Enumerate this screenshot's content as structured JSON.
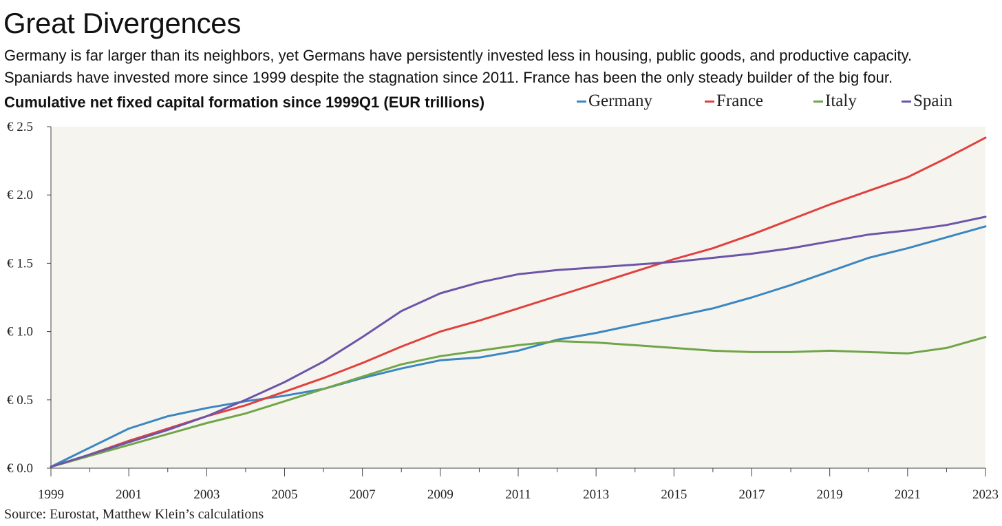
{
  "title": "Great Divergences",
  "subtitle_lines": [
    "Germany is far larger than its neighbors, yet Germans have persistently invested less in housing, public goods, and productive capacity.",
    "Spaniards have invested more since 1999 despite the stagnation since 2011. France has been the only steady builder of the big four."
  ],
  "source": "Source: Eurostat, Matthew Klein’s calculations",
  "chart_data": {
    "type": "line",
    "title": "Cumulative net fixed capital formation since 1999Q1 (EUR trillions)",
    "xlabel": "",
    "ylabel": "",
    "xlim": [
      1999,
      2023
    ],
    "ylim": [
      0,
      2.5
    ],
    "x_ticks": [
      "1999",
      "2001",
      "2003",
      "2005",
      "2007",
      "2009",
      "2011",
      "2013",
      "2015",
      "2017",
      "2019",
      "2021",
      "2023"
    ],
    "y_ticks": [
      "€ 0.0",
      "€ 0.5",
      "€ 1.0",
      "€ 1.5",
      "€ 2.0",
      "€ 2.5"
    ],
    "y_tick_values": [
      0,
      0.5,
      1.0,
      1.5,
      2.0,
      2.5
    ],
    "grid": false,
    "legend_position": "top-right",
    "series": [
      {
        "name": "Germany",
        "color": "#3a87c1",
        "x": [
          1999,
          2000,
          2001,
          2002,
          2003,
          2004,
          2005,
          2006,
          2007,
          2008,
          2009,
          2010,
          2011,
          2012,
          2013,
          2014,
          2015,
          2016,
          2017,
          2018,
          2019,
          2020,
          2021,
          2022,
          2023
        ],
        "y": [
          0.01,
          0.15,
          0.29,
          0.38,
          0.44,
          0.49,
          0.53,
          0.58,
          0.66,
          0.73,
          0.79,
          0.81,
          0.86,
          0.94,
          0.99,
          1.05,
          1.11,
          1.17,
          1.25,
          1.34,
          1.44,
          1.54,
          1.61,
          1.69,
          1.77
        ]
      },
      {
        "name": "France",
        "color": "#e0413e",
        "x": [
          1999,
          2000,
          2001,
          2002,
          2003,
          2004,
          2005,
          2006,
          2007,
          2008,
          2009,
          2010,
          2011,
          2012,
          2013,
          2014,
          2015,
          2016,
          2017,
          2018,
          2019,
          2020,
          2021,
          2022,
          2023
        ],
        "y": [
          0.01,
          0.1,
          0.2,
          0.29,
          0.38,
          0.46,
          0.56,
          0.66,
          0.77,
          0.89,
          1.0,
          1.08,
          1.17,
          1.26,
          1.35,
          1.44,
          1.53,
          1.61,
          1.71,
          1.82,
          1.93,
          2.03,
          2.13,
          2.27,
          2.42
        ]
      },
      {
        "name": "Italy",
        "color": "#70a549",
        "x": [
          1999,
          2000,
          2001,
          2002,
          2003,
          2004,
          2005,
          2006,
          2007,
          2008,
          2009,
          2010,
          2011,
          2012,
          2013,
          2014,
          2015,
          2016,
          2017,
          2018,
          2019,
          2020,
          2021,
          2022,
          2023
        ],
        "y": [
          0.01,
          0.09,
          0.17,
          0.25,
          0.33,
          0.4,
          0.49,
          0.58,
          0.67,
          0.76,
          0.82,
          0.86,
          0.9,
          0.93,
          0.92,
          0.9,
          0.88,
          0.86,
          0.85,
          0.85,
          0.86,
          0.85,
          0.84,
          0.88,
          0.96
        ]
      },
      {
        "name": "Spain",
        "color": "#6c55a8",
        "x": [
          1999,
          2000,
          2001,
          2002,
          2003,
          2004,
          2005,
          2006,
          2007,
          2008,
          2009,
          2010,
          2011,
          2012,
          2013,
          2014,
          2015,
          2016,
          2017,
          2018,
          2019,
          2020,
          2021,
          2022,
          2023
        ],
        "y": [
          0.01,
          0.1,
          0.19,
          0.28,
          0.38,
          0.5,
          0.63,
          0.78,
          0.96,
          1.15,
          1.28,
          1.36,
          1.42,
          1.45,
          1.47,
          1.49,
          1.51,
          1.54,
          1.57,
          1.61,
          1.66,
          1.71,
          1.74,
          1.78,
          1.84
        ]
      }
    ]
  }
}
